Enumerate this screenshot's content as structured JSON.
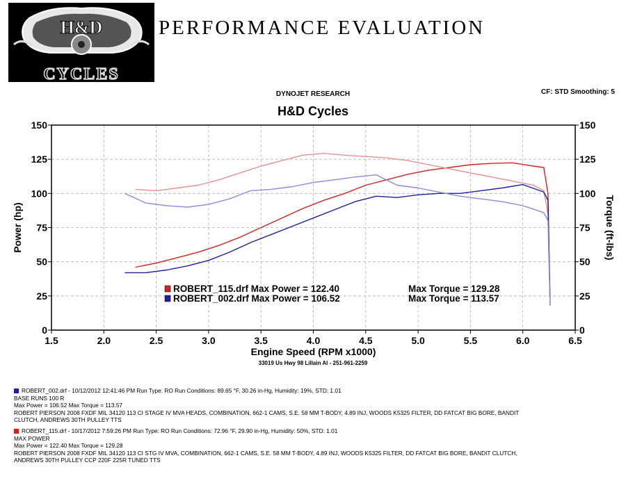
{
  "header": {
    "logo_text_top": "H&D",
    "logo_text_bottom": "CYCLES",
    "title": "PERFORMANCE EVALUATION"
  },
  "dyno_label": "DYNOJET RESEARCH",
  "cf_smoothing": "CF: STD  Smoothing: 5",
  "address": "33019 Us Hwy 98 Lillain Al - 251-961-2259",
  "colors": {
    "run_115": "#d42020",
    "run_002": "#1e1ea8",
    "grid": "#b0b0b0"
  },
  "chart_data": {
    "type": "line",
    "title": "H&D Cycles",
    "xlabel": "Engine Speed (RPM x1000)",
    "ylabel_left": "Power (hp)",
    "ylabel_right": "Torque (ft-lbs)",
    "xlim": [
      1.5,
      6.5
    ],
    "ylim": [
      0,
      150
    ],
    "xticks": [
      "1.5",
      "2.0",
      "2.5",
      "3.0",
      "3.5",
      "4.0",
      "4.5",
      "5.0",
      "5.5",
      "6.0",
      "6.5"
    ],
    "yticks": [
      "0",
      "25",
      "50",
      "75",
      "100",
      "125",
      "150"
    ],
    "grid": true,
    "legend": [
      {
        "file": "ROBERT_115.drf",
        "max_power_label": "Max Power =",
        "max_power": "122.40",
        "max_torque_label": "Max Torque =",
        "max_torque": "129.28",
        "color": "#d42020"
      },
      {
        "file": "ROBERT_002.drf",
        "max_power_label": "Max Power =",
        "max_power": "106.52",
        "max_torque_label": "Max Torque =",
        "max_torque": "113.57",
        "color": "#1e1ea8"
      }
    ],
    "series": [
      {
        "run": "ROBERT_115.drf",
        "measure": "power",
        "color": "#d42020",
        "x": [
          2.3,
          2.5,
          2.7,
          2.9,
          3.1,
          3.3,
          3.5,
          3.7,
          3.9,
          4.1,
          4.3,
          4.5,
          4.7,
          4.9,
          5.1,
          5.3,
          5.5,
          5.7,
          5.9,
          6.1,
          6.2,
          6.24,
          6.26
        ],
        "y": [
          46,
          49,
          53,
          57,
          62,
          68,
          75,
          82,
          89,
          95,
          100,
          106,
          110,
          114,
          117,
          119,
          121,
          122,
          122.4,
          120,
          119,
          100,
          20
        ]
      },
      {
        "run": "ROBERT_115.drf",
        "measure": "torque",
        "color": "#e88f8f",
        "x": [
          2.3,
          2.5,
          2.7,
          2.9,
          3.1,
          3.3,
          3.5,
          3.7,
          3.9,
          4.1,
          4.3,
          4.5,
          4.7,
          4.9,
          5.1,
          5.3,
          5.5,
          5.7,
          5.9,
          6.1,
          6.2,
          6.24,
          6.26
        ],
        "y": [
          103,
          102,
          104,
          106,
          110,
          115,
          120,
          124,
          128,
          129.3,
          128,
          127,
          126,
          124,
          121,
          118,
          115,
          112,
          109,
          106,
          102,
          85,
          20
        ]
      },
      {
        "run": "ROBERT_002.drf",
        "measure": "power",
        "color": "#1e1ea8",
        "x": [
          2.2,
          2.4,
          2.6,
          2.8,
          3.0,
          3.2,
          3.4,
          3.6,
          3.8,
          4.0,
          4.2,
          4.4,
          4.6,
          4.8,
          5.0,
          5.2,
          5.4,
          5.6,
          5.8,
          6.0,
          6.2,
          6.24,
          6.26
        ],
        "y": [
          42,
          42,
          44,
          47,
          51,
          57,
          64,
          70,
          76,
          82,
          88,
          94,
          98,
          97,
          99,
          100,
          100,
          102,
          104,
          106.5,
          101,
          95,
          18
        ]
      },
      {
        "run": "ROBERT_002.drf",
        "measure": "torque",
        "color": "#8a8ae0",
        "x": [
          2.2,
          2.4,
          2.6,
          2.8,
          3.0,
          3.2,
          3.4,
          3.6,
          3.8,
          4.0,
          4.2,
          4.4,
          4.6,
          4.8,
          5.0,
          5.2,
          5.4,
          5.6,
          5.8,
          6.0,
          6.2,
          6.24,
          6.26
        ],
        "y": [
          100,
          93,
          91,
          90,
          92,
          96,
          102,
          103,
          105,
          108,
          110,
          112,
          113.6,
          106,
          104,
          101,
          98,
          96,
          94,
          91,
          86,
          80,
          18
        ]
      }
    ]
  },
  "runs": [
    {
      "color": "#1e1ea8",
      "lines": [
        "ROBERT_002.drf - 10/12/2012 12:41:46 PM  Run Type: RO  Run Conditions: 89.65 °F, 30.26 in-Hg,  Humidity:  19%, STD: 1.01",
        "BASE RUNS 100 R",
        "Max Power = 106.52  Max Torque = 113.57",
        "ROBERT PIERSON 2008 FXDF MIL 34120 113 CI STAGE IV MVA HEADS, COMBINATION, 662-1 CAMS, S.E. 58 MM T-BODY, 4.89 INJ, WOODS K5325  FILTER, DD FATCAT BIG BORE, BANDIT",
        "CLUTCH, ANDREWS 30TH PULLEY TTS"
      ]
    },
    {
      "color": "#d42020",
      "lines": [
        "ROBERT_115.drf - 10/17/2012 7:59:26 PM  Run Type: RO  Run Conditions: 72.96 °F, 29.90 in-Hg,  Humidity:  50%, STD: 1.01",
        "MAX POWER",
        "Max Power = 122.40  Max Torque = 129.28",
        "ROBERT PIERSON 2008 FXDF MIL 34120 113 CI STG IV  MVA, COMBINATION, 662-1 CAMS, S.E. 58 MM T-BODY, 4.89 INJ, WOODS K5325  FILTER, DD FATCAT BIG BORE, BANDIT CLUTCH,",
        "ANDREWS 30TH PULLEY CCP 220F 225R TUNED TTS"
      ]
    }
  ]
}
